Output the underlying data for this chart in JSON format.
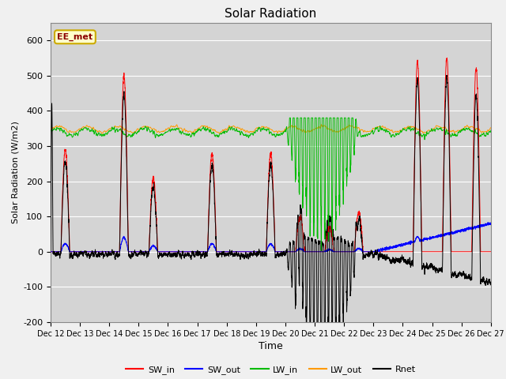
{
  "title": "Solar Radiation",
  "xlabel": "Time",
  "ylabel": "Solar Radiation (W/m2)",
  "ylim": [
    -200,
    650
  ],
  "yticks": [
    -200,
    -100,
    0,
    100,
    200,
    300,
    400,
    500,
    600
  ],
  "xtick_labels": [
    "Dec 12",
    "Dec 13",
    "Dec 14",
    "Dec 15",
    "Dec 16",
    "Dec 17",
    "Dec 18",
    "Dec 19",
    "Dec 20",
    "Dec 21",
    "Dec 22",
    "Dec 23",
    "Dec 24",
    "Dec 25",
    "Dec 26",
    "Dec 27"
  ],
  "colors": {
    "SW_in": "#ff0000",
    "SW_out": "#0000ff",
    "LW_in": "#00bb00",
    "LW_out": "#ff9900",
    "Rnet": "#000000"
  },
  "annotation_text": "EE_met",
  "annotation_box_facecolor": "#ffffcc",
  "annotation_box_edgecolor": "#ccaa00",
  "fig_facecolor": "#f0f0f0",
  "ax_facecolor": "#d4d4d4"
}
